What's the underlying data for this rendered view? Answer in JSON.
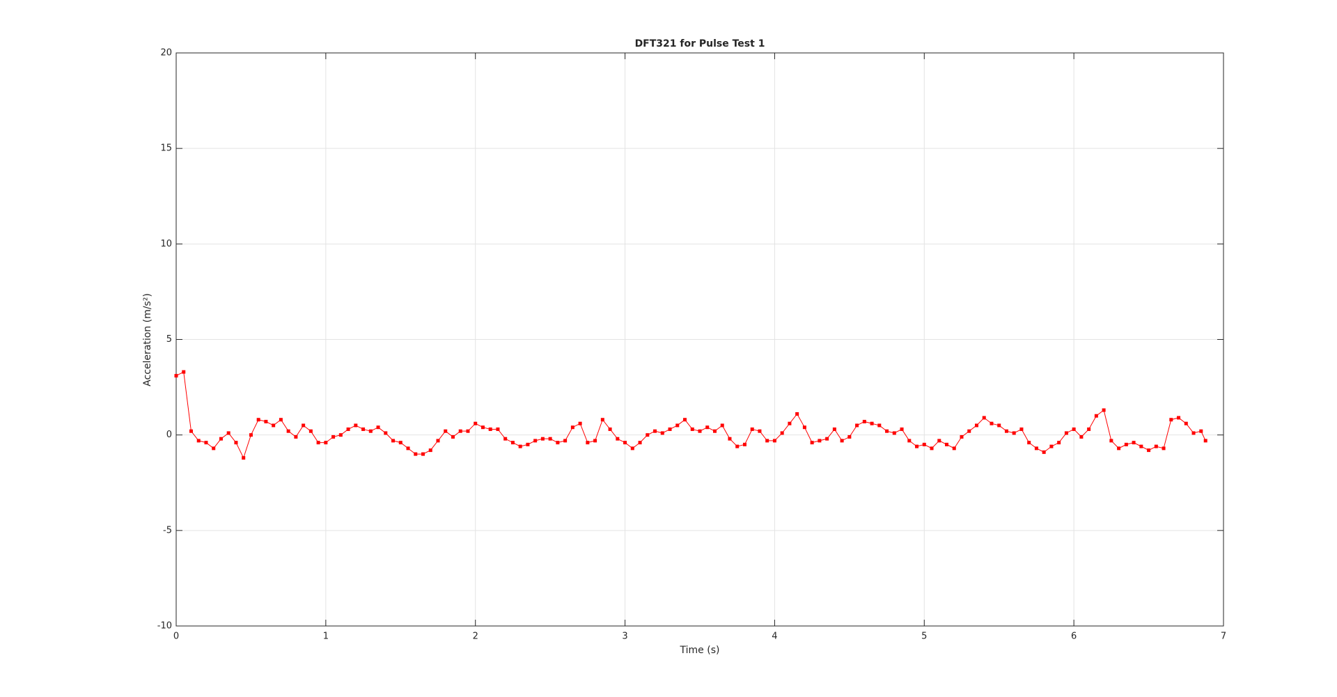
{
  "chart_data": {
    "type": "line",
    "title": "DFT321 for Pulse Test 1",
    "x_label": "Time (s)",
    "y_label": "Acceleration (m/s²)",
    "x": [
      0,
      0.05,
      0.1,
      0.15,
      0.2,
      0.25,
      0.3,
      0.35,
      0.4,
      0.45,
      0.5,
      0.55,
      0.6,
      0.65,
      0.7,
      0.75,
      0.8,
      0.85,
      0.9,
      0.95,
      1.0,
      1.05,
      1.1,
      1.15,
      1.2,
      1.25,
      1.3,
      1.35,
      1.4,
      1.45,
      1.5,
      1.55,
      1.6,
      1.65,
      1.7,
      1.75,
      1.8,
      1.85,
      1.9,
      1.95,
      2.0,
      2.05,
      2.1,
      2.15,
      2.2,
      2.25,
      2.3,
      2.35,
      2.4,
      2.45,
      2.5,
      2.55,
      2.6,
      2.65,
      2.7,
      2.75,
      2.8,
      2.85,
      2.9,
      2.95,
      3.0,
      3.05,
      3.1,
      3.15,
      3.2,
      3.25,
      3.3,
      3.35,
      3.4,
      3.45,
      3.5,
      3.55,
      3.6,
      3.65,
      3.7,
      3.75,
      3.8,
      3.85,
      3.9,
      3.95,
      4.0,
      4.05,
      4.1,
      4.15,
      4.2,
      4.25,
      4.3,
      4.35,
      4.4,
      4.45,
      4.5,
      4.55,
      4.6,
      4.65,
      4.7,
      4.75,
      4.8,
      4.85,
      4.9,
      4.95,
      5.0,
      5.05,
      5.1,
      5.15,
      5.2,
      5.25,
      5.3,
      5.35,
      5.4,
      5.45,
      5.5,
      5.55,
      5.6,
      5.65,
      5.7,
      5.75,
      5.8,
      5.85,
      5.9,
      5.95,
      6.0,
      6.05,
      6.1,
      6.15,
      6.2,
      6.25,
      6.3,
      6.35,
      6.4,
      6.45,
      6.5,
      6.55,
      6.6,
      6.65,
      6.7,
      6.75,
      6.8,
      6.85,
      6.88
    ],
    "values": [
      3.1,
      3.3,
      0.2,
      -0.3,
      -0.4,
      -0.7,
      -0.2,
      0.1,
      -0.4,
      -1.2,
      0.0,
      0.8,
      0.7,
      0.5,
      0.8,
      0.2,
      -0.1,
      0.5,
      0.2,
      -0.4,
      -0.4,
      -0.1,
      0.0,
      0.3,
      0.5,
      0.3,
      0.2,
      0.4,
      0.1,
      -0.3,
      -0.4,
      -0.7,
      -1.0,
      -1.0,
      -0.8,
      -0.3,
      0.2,
      -0.1,
      0.2,
      0.2,
      0.6,
      0.4,
      0.3,
      0.3,
      -0.2,
      -0.4,
      -0.6,
      -0.5,
      -0.3,
      -0.2,
      -0.2,
      -0.4,
      -0.3,
      0.4,
      0.6,
      -0.4,
      -0.3,
      0.8,
      0.3,
      -0.2,
      -0.4,
      -0.7,
      -0.4,
      0.0,
      0.2,
      0.1,
      0.3,
      0.5,
      0.8,
      0.3,
      0.2,
      0.4,
      0.2,
      0.5,
      -0.2,
      -0.6,
      -0.5,
      0.3,
      0.2,
      -0.3,
      -0.3,
      0.1,
      0.6,
      1.1,
      0.4,
      -0.4,
      -0.3,
      -0.2,
      0.3,
      -0.3,
      -0.1,
      0.5,
      0.7,
      0.6,
      0.5,
      0.2,
      0.1,
      0.3,
      -0.3,
      -0.6,
      -0.5,
      -0.7,
      -0.3,
      -0.5,
      -0.7,
      -0.1,
      0.2,
      0.5,
      0.9,
      0.6,
      0.5,
      0.2,
      0.1,
      0.3,
      -0.4,
      -0.7,
      -0.9,
      -0.6,
      -0.4,
      0.1,
      0.3,
      -0.1,
      0.3,
      1.0,
      1.3,
      -0.3,
      -0.7,
      -0.5,
      -0.4,
      -0.6,
      -0.8,
      -0.6,
      -0.7,
      0.8,
      0.9,
      0.6,
      0.1,
      0.2,
      -0.3
    ],
    "color": "#ff0000",
    "xlim": [
      0,
      7
    ],
    "xticks": [
      0,
      1,
      2,
      3,
      4,
      5,
      6,
      7
    ],
    "ylim": [
      -10,
      20
    ],
    "yticks": [
      -10,
      -5,
      0,
      5,
      10,
      15,
      20
    ],
    "grid": true
  }
}
